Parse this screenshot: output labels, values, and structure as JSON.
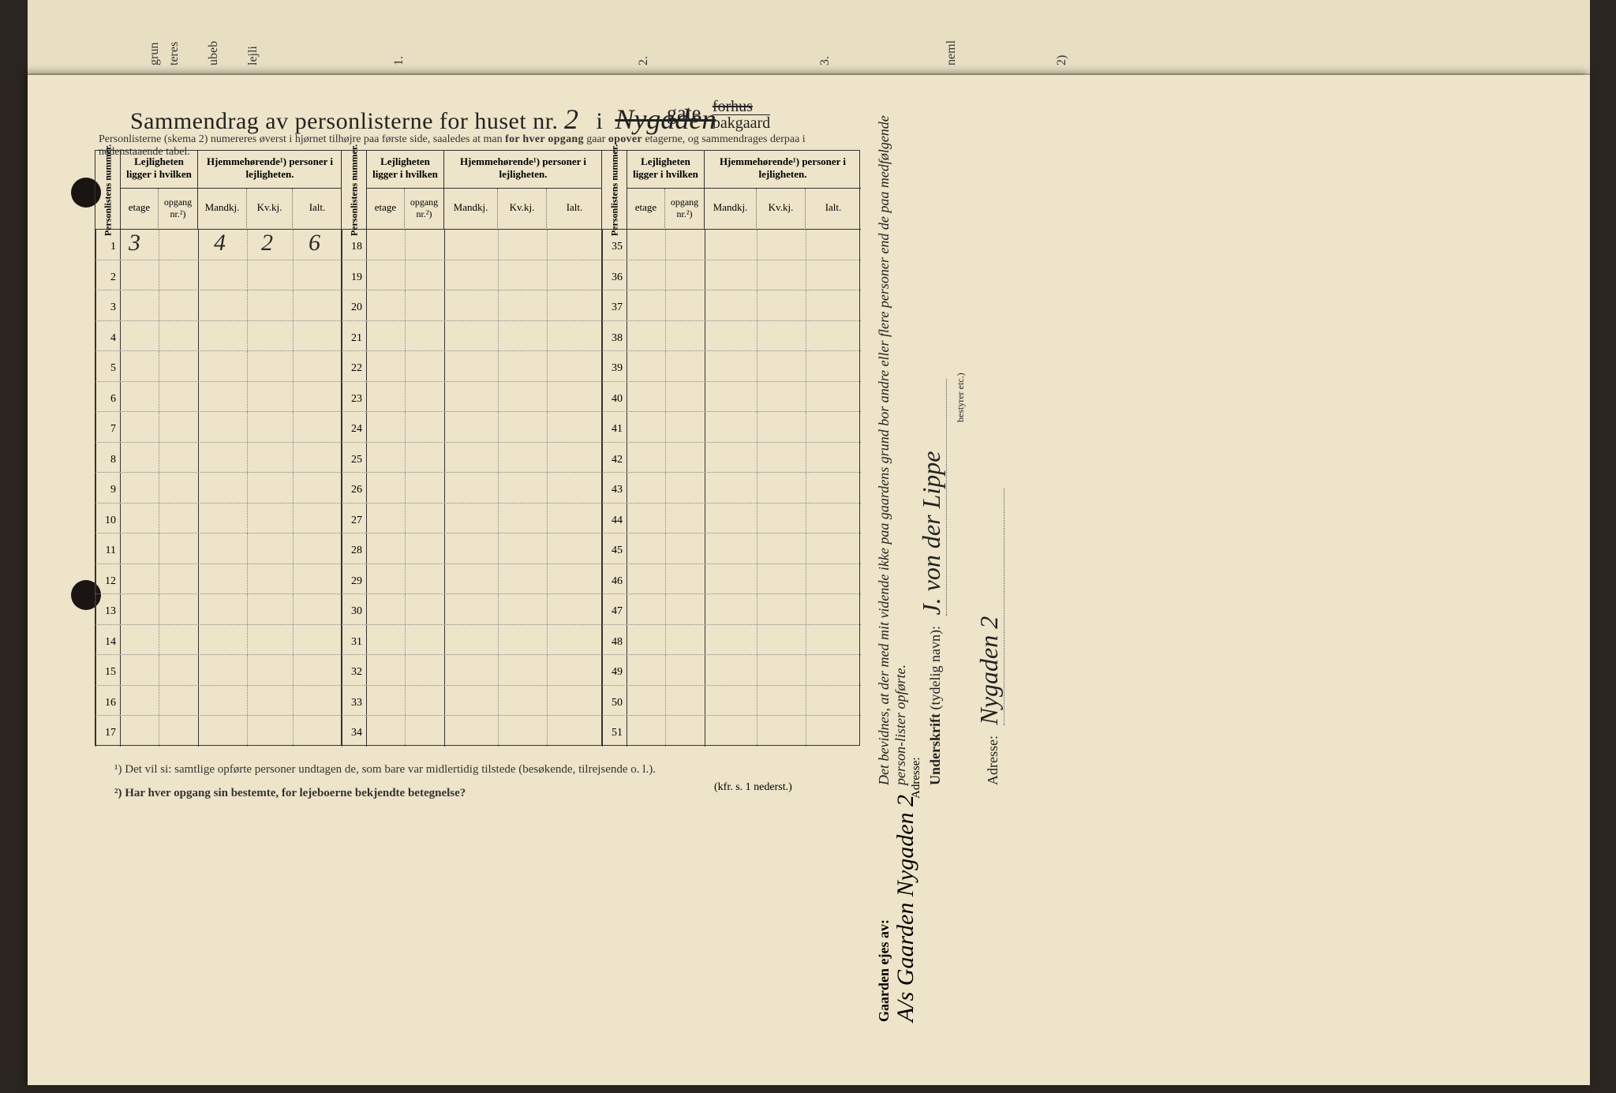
{
  "top_marginal_labels": [
    "grun",
    "teres",
    "ubeb",
    "lejli",
    "1.",
    "2.",
    "3.",
    "neml",
    "2)"
  ],
  "title": {
    "prefix": "Sammendrag av personlisterne for huset nr.",
    "house_nr": "2",
    "mid": "i",
    "street_hw": "Nygaden",
    "gate": "gate",
    "forhus": "forhus",
    "bakgaard": "bakgaard"
  },
  "subtitle": {
    "a": "Personlisterne (skema 2) numereres øverst i hjørnet tilhøjre paa første side, saaledes at man ",
    "b": "for hver opgang",
    "c": " gaar ",
    "d": "opover",
    "e": " etagerne, og sammendrages derpaa i nedenstaaende tabel."
  },
  "headers": {
    "personlistens": "Personlistens nummer.",
    "lej": "Lejligheten ligger i hvilken",
    "hjem": "Hjemmehørende¹) personer i lejligheten.",
    "etage": "etage",
    "opgang": "opgang nr.²)",
    "mandkj": "Mandkj.",
    "kvkj": "Kv.kj.",
    "ialt": "Ialt."
  },
  "row_numbers": {
    "b1": [
      1,
      2,
      3,
      4,
      5,
      6,
      7,
      8,
      9,
      10,
      11,
      12,
      13,
      14,
      15,
      16,
      17
    ],
    "b2": [
      18,
      19,
      20,
      21,
      22,
      23,
      24,
      25,
      26,
      27,
      28,
      29,
      30,
      31,
      32,
      33,
      34
    ],
    "b3": [
      35,
      36,
      37,
      38,
      39,
      40,
      41,
      42,
      43,
      44,
      45,
      46,
      47,
      48,
      49,
      50,
      51
    ]
  },
  "handwritten_row1": {
    "etage": "3",
    "mandkj": "4",
    "kvkj": "2",
    "ialt": "6"
  },
  "footnotes": {
    "f1": "¹)  Det vil si: samtlige opførte personer undtagen de, som bare var midlertidig tilstede (besøkende, tilrejsende o. l.).",
    "f2": "²)  Har hver opgang sin bestemte, for lejeboerne bekjendte betegnelse?",
    "kfr": "(kfr. s. 1 nederst.)"
  },
  "right": {
    "bevidnes": "Det bevidnes, at der med mit vidende ikke paa gaardens grund bor andre eller flere personer end de paa medfølgende    person-lister opførte.",
    "underskrift_label": "Underskrift",
    "underskrift_note": "(tydelig navn):",
    "bestyrer_note": "bestyrer etc.)",
    "signature": "J. von der Lippe",
    "adresse_label": "Adresse:",
    "adresse_value": "Nygaden 2"
  },
  "gaarden": {
    "label": "Gaarden ejes av:",
    "value": "A/s Gaarden Nygaden 2",
    "adresse_label": "Adresse:"
  },
  "colors": {
    "paper": "#ede4c9",
    "ink": "#222222",
    "dotted": "#888888",
    "bg": "#2a2520"
  }
}
